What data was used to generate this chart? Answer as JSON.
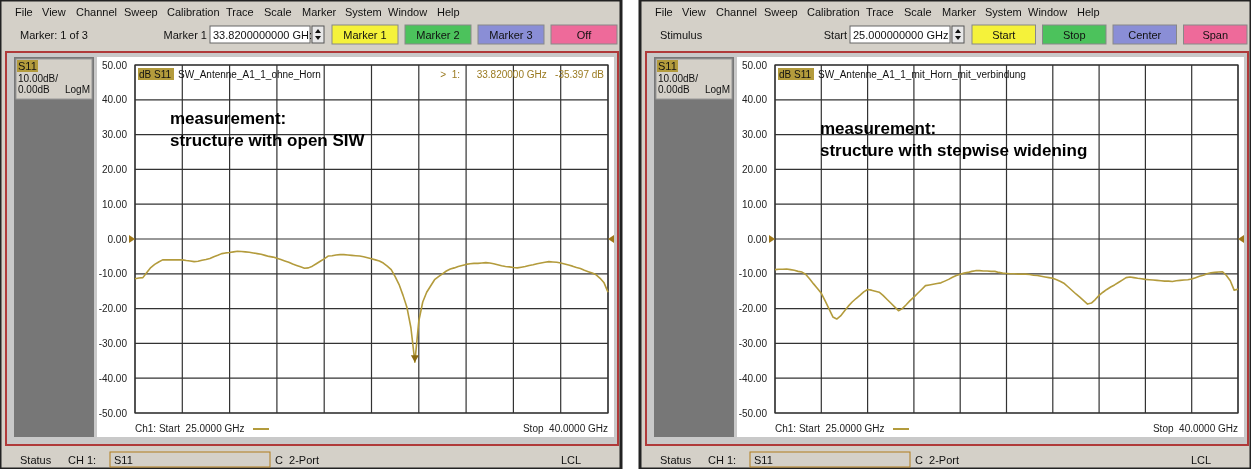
{
  "chart_data": [
    {
      "type": "line",
      "title": "measurement:",
      "subtitle": "structure with open SIW",
      "categories": [
        null,
        null,
        null,
        null,
        null,
        null,
        null,
        null,
        null,
        null,
        null,
        null,
        null,
        null,
        null,
        null,
        null,
        null,
        null,
        null,
        null,
        null,
        null,
        null,
        null,
        null,
        null,
        null,
        null,
        null,
        null,
        null,
        null,
        null,
        null,
        null,
        null,
        null,
        null,
        null,
        null,
        null,
        null,
        null,
        null,
        null,
        null,
        null,
        null,
        null,
        null,
        null,
        null,
        null,
        null,
        null,
        null,
        null,
        null,
        null,
        null,
        null,
        null,
        null,
        null,
        null,
        null,
        null,
        null,
        null,
        null,
        null,
        null,
        null,
        null,
        null,
        null,
        null,
        null,
        null,
        null,
        null,
        null,
        null,
        null,
        null,
        null,
        null,
        null,
        null,
        null,
        null,
        null,
        null,
        null,
        null,
        null,
        null,
        null,
        null,
        null,
        null,
        null,
        null,
        null,
        null,
        null,
        null,
        null,
        null,
        null,
        null,
        null,
        null,
        null,
        null,
        null,
        null,
        null,
        null,
        null
      ],
      "series": [
        {
          "name": "S11",
          "color": "#b39b3c",
          "values": [
            -11.4,
            -11.2,
            -11.1,
            -9.6,
            -8.2,
            -7.3,
            -6.6,
            -6.0,
            -6.0,
            -6.0,
            -6.0,
            -6.0,
            -6.0,
            -6.2,
            -6.3,
            -6.5,
            -6.4,
            -6.1,
            -5.9,
            -5.6,
            -5.1,
            -4.7,
            -4.2,
            -4.0,
            -3.9,
            -3.7,
            -3.5,
            -3.6,
            -3.7,
            -3.8,
            -4.0,
            -4.2,
            -4.4,
            -4.7,
            -5.0,
            -5.2,
            -5.5,
            -5.9,
            -6.3,
            -6.7,
            -7.2,
            -7.6,
            -8.0,
            -8.4,
            -8.3,
            -7.8,
            -7.1,
            -6.4,
            -5.7,
            -4.9,
            -4.8,
            -4.6,
            -4.5,
            -4.5,
            -4.6,
            -4.7,
            -4.8,
            -4.9,
            -5.1,
            -5.4,
            -5.7,
            -6.0,
            -6.3,
            -6.9,
            -7.8,
            -8.8,
            -10.8,
            -13.1,
            -16.2,
            -19.7,
            -25.5,
            -35.4,
            -23.6,
            -18.1,
            -15.3,
            -13.5,
            -11.7,
            -10.8,
            -10.0,
            -9.2,
            -8.6,
            -8.3,
            -7.9,
            -7.6,
            -7.3,
            -7.1,
            -7.0,
            -7.0,
            -6.9,
            -6.8,
            -6.9,
            -7.1,
            -7.4,
            -7.7,
            -7.9,
            -8.0,
            -8.2,
            -8.3,
            -8.1,
            -7.9,
            -7.6,
            -7.4,
            -7.1,
            -6.9,
            -6.7,
            -6.5,
            -6.6,
            -6.7,
            -6.9,
            -7.2,
            -7.5,
            -7.8,
            -8.2,
            -8.5,
            -9.0,
            -9.4,
            -9.8,
            -10.3,
            -11.3,
            -12.6,
            -15.3
          ]
        }
      ],
      "ylim": [
        -50,
        50
      ],
      "yticks": [
        {
          "value": 50,
          "label": "50.00"
        },
        {
          "value": 40,
          "label": "40.00"
        },
        {
          "value": 30,
          "label": "30.00"
        },
        {
          "value": 20,
          "label": "20.00"
        },
        {
          "value": 10,
          "label": "10.00"
        },
        {
          "value": 0,
          "label": "0.00"
        },
        {
          "value": -10,
          "label": "-10.00"
        },
        {
          "value": -20,
          "label": "-20.00"
        },
        {
          "value": -30,
          "label": "-30.00"
        },
        {
          "value": -40,
          "label": "-40.00"
        },
        {
          "value": -50,
          "label": "-50.00"
        }
      ],
      "tick_labels": "y",
      "grid": true,
      "line_style": "solid",
      "annotations": [
        "File",
        "View",
        "Channel",
        "Sweep",
        "Calibration",
        "Trace",
        "Scale",
        "Marker",
        "System",
        "Window",
        "Help",
        "Marker: 1 of 3",
        "Marker 1",
        "33.8200000000 GH:",
        "Marker 1",
        "Marker 2",
        "Marker 3",
        "Off",
        "10.00dB/",
        "0.00dB",
        "LogM",
        "dB S11",
        "SW_Antenne_A1_1_ohne_Horn",
        "Ch1: Start  25.0000 GHz",
        "Stop  40.0000 GHz",
        "Status",
        "CH 1:",
        "S11",
        "C  2-Port",
        "LCL",
        ">  1:      33.820000 GHz   -35.397 dB"
      ]
    },
    {
      "type": "line",
      "title": "measurement:",
      "subtitle": "structure with stepwise widening",
      "categories": [
        null,
        null,
        null,
        null,
        null,
        null,
        null,
        null,
        null,
        null,
        null,
        null,
        null,
        null,
        null,
        null,
        null,
        null,
        null,
        null,
        null,
        null,
        null,
        null,
        null,
        null,
        null,
        null,
        null,
        null,
        null,
        null,
        null,
        null,
        null,
        null,
        null,
        null,
        null,
        null,
        null,
        null,
        null,
        null,
        null,
        null,
        null,
        null,
        null,
        null,
        null,
        null,
        null,
        null,
        null,
        null,
        null,
        null,
        null,
        null,
        null,
        null,
        null,
        null,
        null,
        null,
        null,
        null,
        null,
        null,
        null,
        null,
        null,
        null,
        null,
        null,
        null,
        null,
        null,
        null,
        null,
        null,
        null,
        null,
        null,
        null,
        null,
        null,
        null,
        null,
        null,
        null,
        null,
        null,
        null,
        null,
        null,
        null,
        null,
        null,
        null,
        null,
        null,
        null,
        null,
        null,
        null,
        null,
        null,
        null,
        null,
        null,
        null,
        null,
        null,
        null,
        null,
        null,
        null,
        null,
        null
      ],
      "series": [
        {
          "name": "S11",
          "color": "#b39b3c",
          "values": [
            -8.8,
            -8.7,
            -8.7,
            -8.6,
            -8.8,
            -9.0,
            -9.3,
            -9.5,
            -10.2,
            -11.5,
            -12.9,
            -14.2,
            -15.6,
            -17.8,
            -20.1,
            -22.4,
            -23.0,
            -22.1,
            -20.7,
            -19.3,
            -18.1,
            -17.1,
            -16.2,
            -15.2,
            -14.5,
            -14.7,
            -15.0,
            -15.3,
            -16.2,
            -17.3,
            -18.4,
            -19.5,
            -20.6,
            -20.0,
            -18.9,
            -17.7,
            -16.7,
            -15.6,
            -14.5,
            -13.4,
            -13.2,
            -13.0,
            -12.8,
            -12.6,
            -12.1,
            -11.6,
            -11.0,
            -10.5,
            -10.1,
            -9.8,
            -9.6,
            -9.3,
            -9.1,
            -9.1,
            -9.2,
            -9.2,
            -9.3,
            -9.3,
            -9.6,
            -9.8,
            -9.9,
            -10.0,
            -10.0,
            -10.1,
            -10.1,
            -10.1,
            -10.2,
            -10.4,
            -10.5,
            -10.7,
            -10.9,
            -11.1,
            -11.3,
            -11.7,
            -12.2,
            -12.8,
            -13.8,
            -14.8,
            -15.8,
            -16.7,
            -17.7,
            -18.7,
            -18.4,
            -17.4,
            -16.2,
            -15.3,
            -14.5,
            -13.8,
            -13.2,
            -12.5,
            -11.8,
            -11.1,
            -10.9,
            -11.1,
            -11.3,
            -11.4,
            -11.6,
            -11.7,
            -11.8,
            -11.9,
            -12.0,
            -12.1,
            -12.1,
            -12.2,
            -12.0,
            -11.9,
            -11.8,
            -11.7,
            -11.5,
            -11.1,
            -10.7,
            -10.4,
            -10.0,
            -9.7,
            -9.6,
            -9.5,
            -9.4,
            -10.5,
            -12.0,
            -14.7,
            -14.4
          ]
        }
      ],
      "ylim": [
        -50,
        50
      ],
      "yticks": [
        {
          "value": 50,
          "label": "50.00"
        },
        {
          "value": 40,
          "label": "40.00"
        },
        {
          "value": 30,
          "label": "30.00"
        },
        {
          "value": 20,
          "label": "20.00"
        },
        {
          "value": 10,
          "label": "10.00"
        },
        {
          "value": 0,
          "label": "0.00"
        },
        {
          "value": -10,
          "label": "-10.00"
        },
        {
          "value": -20,
          "label": "-20.00"
        },
        {
          "value": -30,
          "label": "-30.00"
        },
        {
          "value": -40,
          "label": "-40.00"
        },
        {
          "value": -50,
          "label": "-50.00"
        }
      ],
      "tick_labels": "y",
      "grid": true,
      "line_style": "solid",
      "annotations": [
        "File",
        "View",
        "Channel",
        "Sweep",
        "Calibration",
        "Trace",
        "Scale",
        "Marker",
        "System",
        "Window",
        "Help",
        "Stimulus",
        "Start",
        "25.000000000 GHz",
        "Start",
        "Stop",
        "Center",
        "Span",
        "10.00dB/",
        "0.00dB",
        "LogM",
        "dB S11",
        "SW_Antenne_A1_1_mit_Horn_mit_verbindung",
        "Ch1: Start  25.0000 GHz",
        "Stop  40.0000 GHz",
        "Status",
        "CH 1:",
        "S11",
        "C  2-Port",
        "LCL"
      ]
    }
  ]
}
